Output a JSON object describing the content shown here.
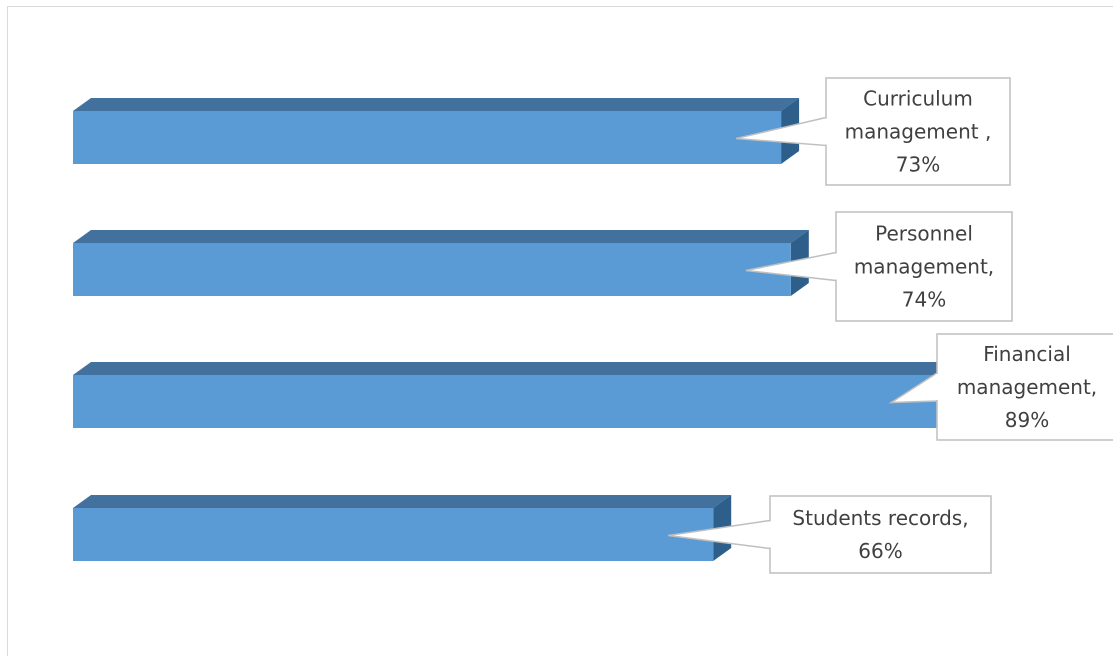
{
  "chart_data": {
    "type": "bar",
    "orientation": "horizontal",
    "three_d": true,
    "bar_color": "#5b9bd5",
    "bar_top_color": "#41719c",
    "bar_side_color": "#2e5f8a",
    "categories": [
      "Curriculum management",
      "Personnel management",
      "Financial management",
      "Students records"
    ],
    "values": [
      73,
      74,
      89,
      66
    ],
    "xlim": [
      0,
      100
    ],
    "data_labels": [
      [
        "Curriculum",
        "management ,",
        "73%"
      ],
      [
        "Personnel",
        "management,",
        "74%"
      ],
      [
        "Financial",
        "management,",
        "89%"
      ],
      [
        "Students records,",
        "66%"
      ]
    ],
    "title": "",
    "xlabel": "",
    "ylabel": "",
    "grid": false,
    "legend": "none"
  }
}
